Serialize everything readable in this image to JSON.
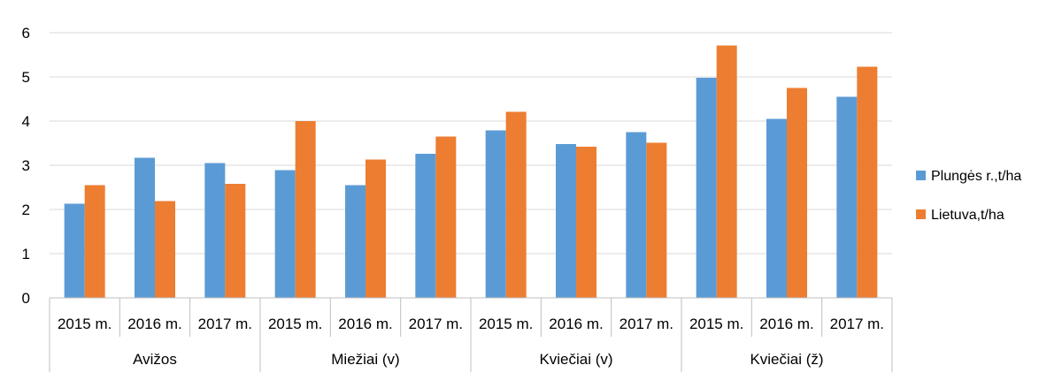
{
  "chart_data": {
    "type": "bar",
    "ylim": [
      0,
      6
    ],
    "yticks": [
      0,
      1,
      2,
      3,
      4,
      5,
      6
    ],
    "grid": true,
    "legend_position": "right",
    "categories": [
      "2015 m.",
      "2016 m.",
      "2017 m.",
      "2015 m.",
      "2016 m.",
      "2017 m.",
      "2015 m.",
      "2016 m.",
      "2017 m.",
      "2015 m.",
      "2016 m.",
      "2017 m."
    ],
    "groups": [
      {
        "label": "Avižos",
        "count": 3
      },
      {
        "label": "Miežiai (v)",
        "count": 3
      },
      {
        "label": "Kviečiai (v)",
        "count": 3
      },
      {
        "label": "Kviečiai (ž)",
        "count": 3
      }
    ],
    "series": [
      {
        "name": "Plungės r.,t/ha",
        "color": "#5B9BD5",
        "values": [
          2.13,
          3.17,
          3.05,
          2.89,
          2.55,
          3.26,
          3.79,
          3.48,
          3.75,
          4.98,
          4.05,
          4.55
        ]
      },
      {
        "name": "Lietuva,t/ha",
        "color": "#ED7D31",
        "values": [
          2.55,
          2.19,
          2.58,
          4.0,
          3.13,
          3.65,
          4.21,
          3.42,
          3.51,
          5.71,
          4.75,
          5.23
        ]
      }
    ]
  }
}
